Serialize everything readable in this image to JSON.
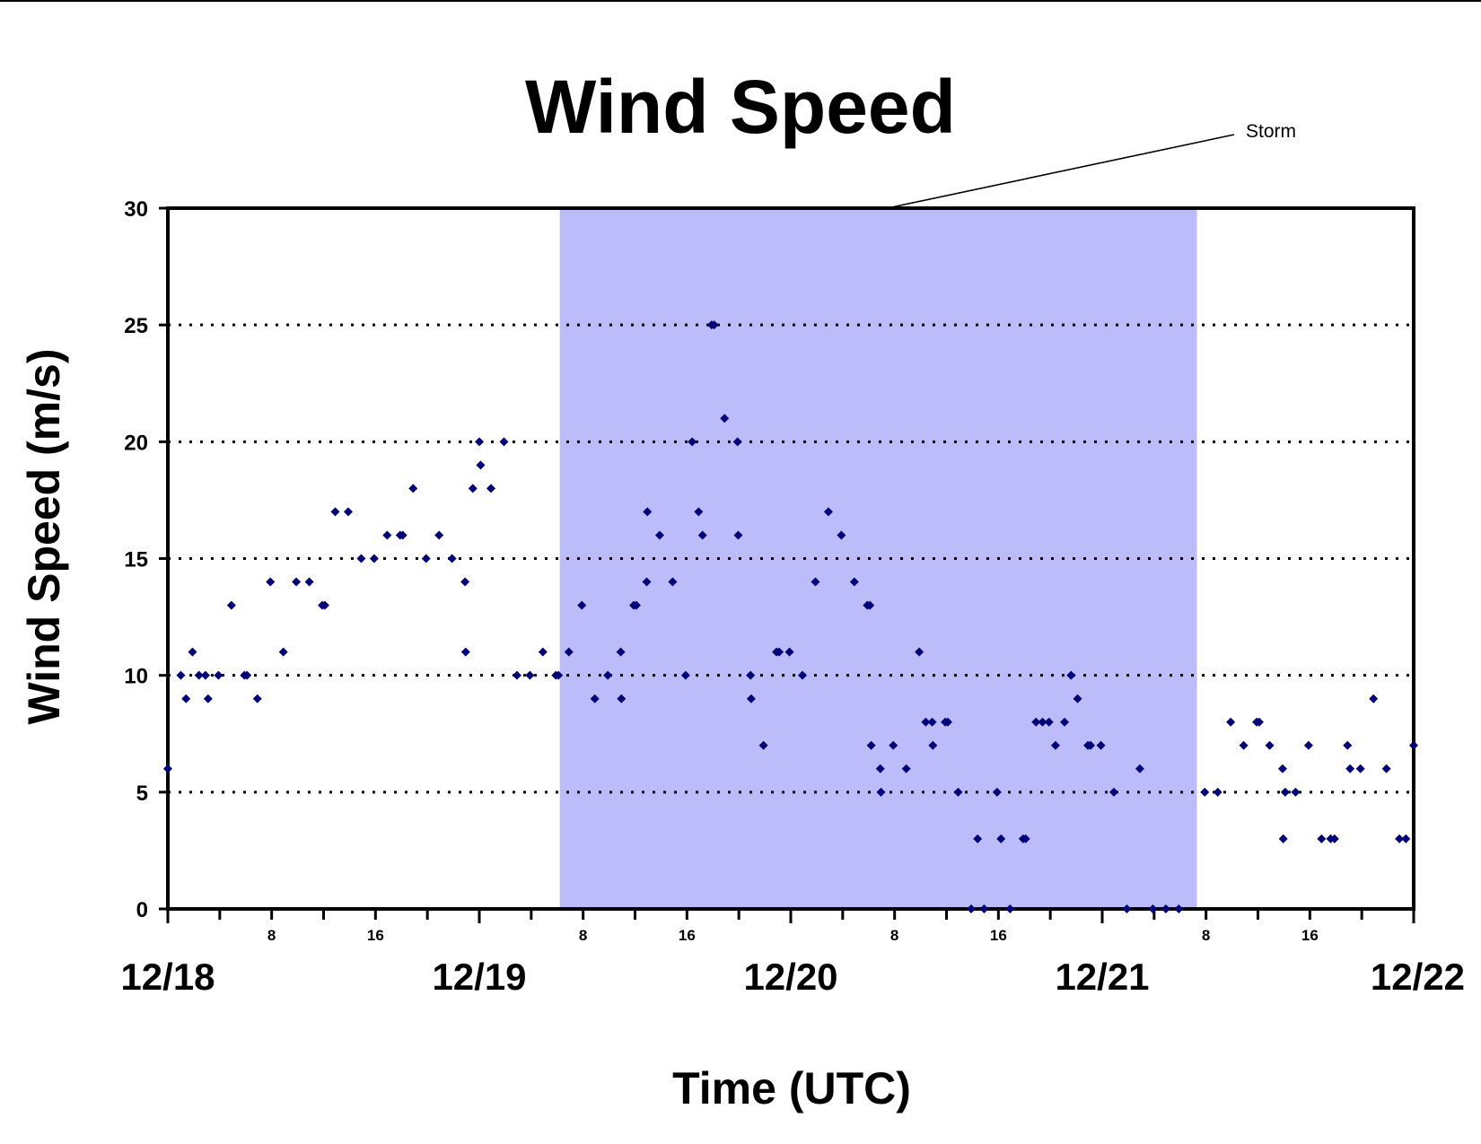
{
  "chart_data": {
    "type": "scatter",
    "title": "Wind Speed",
    "xlabel": "Time (UTC)",
    "ylabel": "Wind Speed (m/s)",
    "x_unit": "hours since 12/18 00 UTC",
    "xlim": [
      0,
      96
    ],
    "ylim": [
      0,
      30
    ],
    "y_ticks": [
      0,
      5,
      10,
      15,
      20,
      25,
      30
    ],
    "y_grid": "dotted",
    "date_labels": [
      {
        "x": 0,
        "label": "12/18"
      },
      {
        "x": 24,
        "label": "12/19"
      },
      {
        "x": 48,
        "label": "12/20"
      },
      {
        "x": 72,
        "label": "12/21"
      },
      {
        "x": 96,
        "label": "12/22"
      }
    ],
    "hour_labels": [
      {
        "x": 8,
        "label": "8"
      },
      {
        "x": 16,
        "label": "16"
      },
      {
        "x": 32,
        "label": "8"
      },
      {
        "x": 40,
        "label": "16"
      },
      {
        "x": 56,
        "label": "8"
      },
      {
        "x": 64,
        "label": "16"
      },
      {
        "x": 80,
        "label": "8"
      },
      {
        "x": 88,
        "label": "16"
      }
    ],
    "shaded_region": {
      "label": "Storm",
      "x_start": 30.2,
      "x_end": 79.3,
      "color": "#bcbcfb"
    },
    "marker_color": "#00007a",
    "series": [
      {
        "name": "Wind Speed",
        "points": [
          [
            0,
            6
          ],
          [
            1,
            10
          ],
          [
            1.4,
            9
          ],
          [
            1.9,
            11
          ],
          [
            2.4,
            10
          ],
          [
            2.9,
            10
          ],
          [
            3.1,
            9
          ],
          [
            3.9,
            10
          ],
          [
            4.9,
            13
          ],
          [
            5.9,
            10
          ],
          [
            6.1,
            10
          ],
          [
            6.9,
            9
          ],
          [
            7.9,
            14
          ],
          [
            8.9,
            11
          ],
          [
            9.9,
            14
          ],
          [
            10.9,
            14
          ],
          [
            11.9,
            13
          ],
          [
            12.1,
            13
          ],
          [
            12.9,
            17
          ],
          [
            13.9,
            17
          ],
          [
            14.9,
            15
          ],
          [
            15.9,
            15
          ],
          [
            16.9,
            16
          ],
          [
            17.9,
            16
          ],
          [
            18.1,
            16
          ],
          [
            18.9,
            18
          ],
          [
            19.9,
            15
          ],
          [
            20.9,
            16
          ],
          [
            21.9,
            15
          ],
          [
            22.9,
            14
          ],
          [
            22.95,
            11
          ],
          [
            23.5,
            18
          ],
          [
            24,
            20
          ],
          [
            24.1,
            19
          ],
          [
            24.9,
            18
          ],
          [
            25.9,
            20
          ],
          [
            26.9,
            10
          ],
          [
            27.9,
            10
          ],
          [
            28.9,
            11
          ],
          [
            29.9,
            10
          ],
          [
            30.1,
            10
          ],
          [
            30.9,
            11
          ],
          [
            31.9,
            13
          ],
          [
            32.9,
            9
          ],
          [
            33.9,
            10
          ],
          [
            34.9,
            11
          ],
          [
            34.95,
            9
          ],
          [
            35.9,
            13
          ],
          [
            36.1,
            13
          ],
          [
            36.9,
            14
          ],
          [
            36.95,
            17
          ],
          [
            37.9,
            16
          ],
          [
            38.9,
            14
          ],
          [
            39.9,
            10
          ],
          [
            40.4,
            20
          ],
          [
            40.9,
            17
          ],
          [
            41.2,
            16
          ],
          [
            41.9,
            25
          ],
          [
            42.1,
            25
          ],
          [
            42.9,
            21
          ],
          [
            43.9,
            20
          ],
          [
            43.95,
            16
          ],
          [
            44.9,
            10
          ],
          [
            44.95,
            9
          ],
          [
            45.9,
            7
          ],
          [
            46.9,
            11
          ],
          [
            47.1,
            11
          ],
          [
            47.9,
            11
          ],
          [
            48.9,
            10
          ],
          [
            49.9,
            14
          ],
          [
            50.9,
            17
          ],
          [
            51.9,
            16
          ],
          [
            52.9,
            14
          ],
          [
            53.9,
            13
          ],
          [
            54.1,
            13
          ],
          [
            54.2,
            7
          ],
          [
            54.9,
            6
          ],
          [
            54.95,
            5
          ],
          [
            55.9,
            7
          ],
          [
            56.9,
            6
          ],
          [
            57.9,
            11
          ],
          [
            58.4,
            8
          ],
          [
            58.9,
            8
          ],
          [
            58.95,
            7
          ],
          [
            59.9,
            8
          ],
          [
            60.1,
            8
          ],
          [
            60.9,
            5
          ],
          [
            61.9,
            0
          ],
          [
            62.4,
            3
          ],
          [
            62.9,
            0
          ],
          [
            63.9,
            5
          ],
          [
            64.2,
            3
          ],
          [
            64.9,
            0
          ],
          [
            65.9,
            3
          ],
          [
            66.1,
            3
          ],
          [
            66.9,
            8
          ],
          [
            67.4,
            8
          ],
          [
            67.9,
            8
          ],
          [
            68.4,
            7
          ],
          [
            69.1,
            8
          ],
          [
            69.6,
            10
          ],
          [
            70.1,
            9
          ],
          [
            70.9,
            7
          ],
          [
            71.1,
            7
          ],
          [
            71.9,
            7
          ],
          [
            72.9,
            5
          ],
          [
            73.9,
            0
          ],
          [
            74.9,
            6
          ],
          [
            75.9,
            0
          ],
          [
            76.9,
            0
          ],
          [
            77.9,
            0
          ],
          [
            79.9,
            5
          ],
          [
            80.9,
            5
          ],
          [
            81.9,
            8
          ],
          [
            82.9,
            7
          ],
          [
            83.9,
            8
          ],
          [
            84.1,
            8
          ],
          [
            84.9,
            7
          ],
          [
            85.9,
            6
          ],
          [
            85.95,
            3
          ],
          [
            86.1,
            5
          ],
          [
            86.9,
            5
          ],
          [
            87.9,
            7
          ],
          [
            88.9,
            3
          ],
          [
            89.6,
            3
          ],
          [
            89.9,
            3
          ],
          [
            90.9,
            7
          ],
          [
            91.1,
            6
          ],
          [
            91.9,
            6
          ],
          [
            92.9,
            9
          ],
          [
            93.9,
            6
          ],
          [
            94.9,
            3
          ],
          [
            95.4,
            3
          ],
          [
            96,
            7
          ]
        ]
      }
    ]
  }
}
